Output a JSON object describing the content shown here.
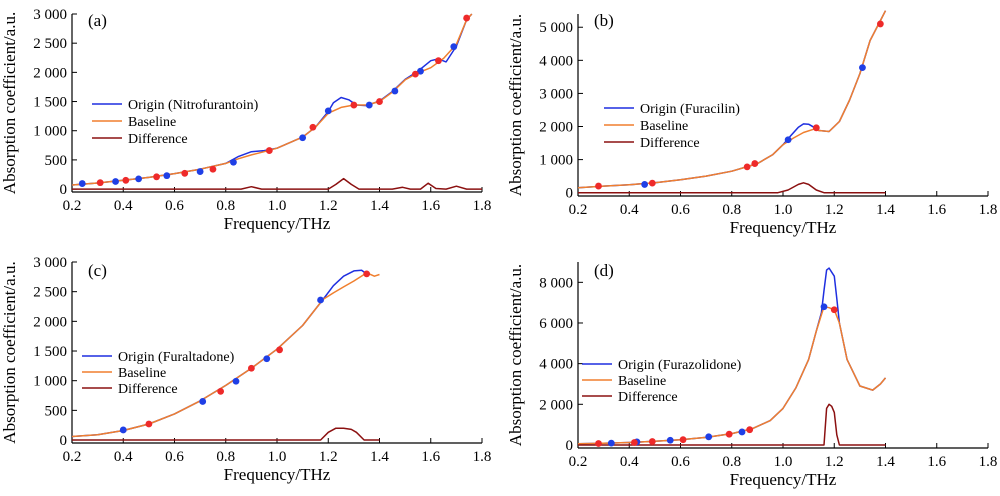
{
  "colors": {
    "origin": "#1f2fe0",
    "baseline": "#f07f2e",
    "difference": "#8b1010",
    "blue_point": "#1f3fe6",
    "red_point": "#ee2a2a"
  },
  "chart_data": [
    {
      "type": "line",
      "panel_label": "(a)",
      "xlabel": "Frequency/THz",
      "ylabel": "Absorption coefficient/a.u.",
      "xlim": [
        0.2,
        1.8
      ],
      "ylim": [
        -50,
        3000
      ],
      "xticks": [
        0.2,
        0.4,
        0.6,
        0.8,
        1.0,
        1.2,
        1.4,
        1.6,
        1.8
      ],
      "xtick_labels": [
        "0.2",
        "0.4",
        "0.6",
        "0.8",
        "1.0",
        "1.2",
        "1.4",
        "1.6",
        "1.8"
      ],
      "yticks": [
        0,
        500,
        1000,
        1500,
        2000,
        2500,
        3000
      ],
      "ytick_labels": [
        "0",
        "500",
        "1 000",
        "1 500",
        "2 000",
        "2 500",
        "3 000"
      ],
      "legend_position": "center-left",
      "series": [
        {
          "name": "Origin (Nitrofurantoin)",
          "color": "#1f2fe0",
          "x": [
            0.2,
            0.3,
            0.4,
            0.5,
            0.6,
            0.7,
            0.8,
            0.85,
            0.9,
            0.95,
            1.0,
            1.1,
            1.15,
            1.2,
            1.22,
            1.25,
            1.28,
            1.31,
            1.35,
            1.4,
            1.45,
            1.5,
            1.55,
            1.6,
            1.63,
            1.66,
            1.7,
            1.74,
            1.76
          ],
          "y": [
            70,
            105,
            150,
            200,
            265,
            340,
            440,
            560,
            640,
            660,
            700,
            890,
            1060,
            1330,
            1480,
            1570,
            1530,
            1440,
            1430,
            1510,
            1670,
            1880,
            2020,
            2200,
            2230,
            2180,
            2450,
            2900,
            3000
          ]
        },
        {
          "name": "Baseline",
          "color": "#f07f2e",
          "x": [
            0.2,
            0.3,
            0.4,
            0.5,
            0.6,
            0.7,
            0.8,
            0.85,
            0.9,
            0.95,
            1.0,
            1.1,
            1.15,
            1.2,
            1.25,
            1.3,
            1.35,
            1.4,
            1.45,
            1.5,
            1.55,
            1.6,
            1.65,
            1.7,
            1.74,
            1.76
          ],
          "y": [
            70,
            105,
            150,
            200,
            265,
            340,
            440,
            520,
            585,
            640,
            700,
            890,
            1060,
            1300,
            1400,
            1440,
            1440,
            1500,
            1660,
            1870,
            1990,
            2080,
            2240,
            2480,
            2900,
            3000
          ]
        },
        {
          "name": "Difference",
          "color": "#8b1010",
          "x": [
            0.2,
            0.86,
            0.9,
            0.94,
            1.2,
            1.23,
            1.26,
            1.29,
            1.32,
            1.45,
            1.49,
            1.52,
            1.56,
            1.59,
            1.62,
            1.66,
            1.7,
            1.74,
            1.8
          ],
          "y": [
            0,
            0,
            40,
            0,
            0,
            80,
            180,
            80,
            0,
            0,
            30,
            0,
            0,
            100,
            10,
            0,
            50,
            0,
            0
          ]
        }
      ],
      "blue_points": [
        [
          0.24,
          95
        ],
        [
          0.37,
          130
        ],
        [
          0.46,
          175
        ],
        [
          0.57,
          230
        ],
        [
          0.7,
          300
        ],
        [
          0.83,
          460
        ],
        [
          1.1,
          880
        ],
        [
          1.2,
          1340
        ],
        [
          1.36,
          1440
        ],
        [
          1.46,
          1680
        ],
        [
          1.56,
          2020
        ],
        [
          1.69,
          2440
        ]
      ],
      "red_points": [
        [
          0.31,
          110
        ],
        [
          0.41,
          150
        ],
        [
          0.53,
          210
        ],
        [
          0.64,
          270
        ],
        [
          0.75,
          340
        ],
        [
          0.97,
          660
        ],
        [
          1.14,
          1060
        ],
        [
          1.3,
          1440
        ],
        [
          1.4,
          1500
        ],
        [
          1.54,
          1970
        ],
        [
          1.63,
          2200
        ],
        [
          1.74,
          2930
        ]
      ]
    },
    {
      "type": "line",
      "panel_label": "(b)",
      "xlabel": "Frequency/THz",
      "ylabel": "Absorption coefficient/a.u.",
      "xlim": [
        0.2,
        1.8
      ],
      "ylim": [
        -100,
        5400
      ],
      "xticks": [
        0.2,
        0.4,
        0.6,
        0.8,
        1.0,
        1.2,
        1.4,
        1.6,
        1.8
      ],
      "xtick_labels": [
        "0.2",
        "0.4",
        "0.6",
        "0.8",
        "1.0",
        "1.2",
        "1.4",
        "1.6",
        "1.8"
      ],
      "yticks": [
        0,
        1000,
        2000,
        3000,
        4000,
        5000
      ],
      "ytick_labels": [
        "0",
        "1 000",
        "2 000",
        "3 000",
        "4 000",
        "5 000"
      ],
      "legend_position": "center-left",
      "series": [
        {
          "name": "Origin (Furacilin)",
          "color": "#1f2fe0",
          "x": [
            0.2,
            0.3,
            0.4,
            0.5,
            0.6,
            0.7,
            0.8,
            0.9,
            0.96,
            1.0,
            1.03,
            1.06,
            1.08,
            1.1,
            1.12,
            1.14,
            1.18,
            1.22,
            1.26,
            1.3,
            1.34,
            1.38,
            1.4
          ],
          "y": [
            150,
            200,
            240,
            300,
            390,
            500,
            650,
            880,
            1150,
            1450,
            1720,
            1980,
            2080,
            2070,
            1980,
            1880,
            1850,
            2150,
            2800,
            3600,
            4600,
            5200,
            5500
          ]
        },
        {
          "name": "Baseline",
          "color": "#f07f2e",
          "x": [
            0.2,
            0.3,
            0.4,
            0.5,
            0.6,
            0.7,
            0.8,
            0.9,
            0.96,
            1.0,
            1.04,
            1.08,
            1.12,
            1.14,
            1.18,
            1.22,
            1.26,
            1.3,
            1.34,
            1.38,
            1.4
          ],
          "y": [
            150,
            200,
            240,
            300,
            390,
            500,
            650,
            880,
            1150,
            1450,
            1650,
            1820,
            1920,
            1880,
            1850,
            2150,
            2800,
            3600,
            4600,
            5200,
            5500
          ]
        },
        {
          "name": "Difference",
          "color": "#8b1010",
          "x": [
            0.2,
            0.98,
            1.02,
            1.06,
            1.08,
            1.1,
            1.13,
            1.16,
            1.4
          ],
          "y": [
            0,
            0,
            80,
            250,
            300,
            250,
            80,
            0,
            0
          ]
        }
      ],
      "blue_points": [
        [
          0.46,
          250
        ],
        [
          1.02,
          1600
        ],
        [
          1.31,
          3780
        ]
      ],
      "red_points": [
        [
          0.28,
          200
        ],
        [
          0.49,
          290
        ],
        [
          0.86,
          780
        ],
        [
          0.89,
          880
        ],
        [
          1.13,
          1960
        ],
        [
          1.38,
          5100
        ]
      ]
    },
    {
      "type": "line",
      "panel_label": "(c)",
      "xlabel": "Frequency/THz",
      "ylabel": "Absorption coefficient/a.u.",
      "xlim": [
        0.2,
        1.8
      ],
      "ylim": [
        -50,
        3000
      ],
      "xticks": [
        0.2,
        0.4,
        0.6,
        0.8,
        1.0,
        1.2,
        1.4,
        1.6,
        1.8
      ],
      "xtick_labels": [
        "0.2",
        "0.4",
        "0.6",
        "0.8",
        "1.0",
        "1.2",
        "1.4",
        "1.6",
        "1.8"
      ],
      "yticks": [
        0,
        500,
        1000,
        1500,
        2000,
        2500,
        3000
      ],
      "ytick_labels": [
        "0",
        "500",
        "1 000",
        "1 500",
        "2 000",
        "2 500",
        "3 000"
      ],
      "legend_position": "lower-left",
      "series": [
        {
          "name": "Origin (Furaltadone)",
          "color": "#1f2fe0",
          "x": [
            0.2,
            0.3,
            0.4,
            0.5,
            0.6,
            0.7,
            0.8,
            0.9,
            1.0,
            1.1,
            1.18,
            1.22,
            1.26,
            1.3,
            1.33,
            1.35
          ],
          "y": [
            60,
            90,
            160,
            270,
            440,
            660,
            920,
            1210,
            1530,
            1930,
            2370,
            2600,
            2760,
            2850,
            2860,
            2800
          ]
        },
        {
          "name": "Baseline",
          "color": "#f07f2e",
          "x": [
            0.2,
            0.3,
            0.4,
            0.5,
            0.6,
            0.7,
            0.8,
            0.9,
            1.0,
            1.1,
            1.18,
            1.22,
            1.26,
            1.3,
            1.34,
            1.36,
            1.38,
            1.4
          ],
          "y": [
            60,
            90,
            160,
            270,
            440,
            660,
            920,
            1210,
            1530,
            1930,
            2370,
            2480,
            2580,
            2680,
            2790,
            2800,
            2760,
            2790
          ]
        },
        {
          "name": "Difference",
          "color": "#8b1010",
          "x": [
            0.2,
            1.17,
            1.2,
            1.23,
            1.26,
            1.29,
            1.31,
            1.34,
            1.36,
            1.4
          ],
          "y": [
            0,
            0,
            130,
            200,
            200,
            180,
            130,
            0,
            0,
            0
          ]
        }
      ],
      "blue_points": [
        [
          0.4,
          170
        ],
        [
          0.71,
          650
        ],
        [
          0.84,
          990
        ],
        [
          0.96,
          1370
        ],
        [
          1.17,
          2360
        ]
      ],
      "red_points": [
        [
          0.5,
          270
        ],
        [
          0.78,
          820
        ],
        [
          0.9,
          1210
        ],
        [
          1.01,
          1520
        ],
        [
          1.35,
          2800
        ]
      ]
    },
    {
      "type": "line",
      "panel_label": "(d)",
      "xlabel": "Frequency/THz",
      "ylabel": "Absorption coefficient/a.u.",
      "xlim": [
        0.2,
        1.8
      ],
      "ylim": [
        -150,
        9000
      ],
      "xticks": [
        0.2,
        0.4,
        0.6,
        0.8,
        1.0,
        1.2,
        1.4,
        1.6,
        1.8
      ],
      "xtick_labels": [
        "0.2",
        "0.4",
        "0.6",
        "0.8",
        "1.0",
        "1.2",
        "1.4",
        "1.6",
        "1.8"
      ],
      "yticks": [
        0,
        2000,
        4000,
        6000,
        8000
      ],
      "ytick_labels": [
        "0",
        "2 000",
        "4 000",
        "6 000",
        "8 000"
      ],
      "legend_position": "center-left",
      "series": [
        {
          "name": "Origin (Furazolidone)",
          "color": "#1f2fe0",
          "x": [
            0.2,
            0.3,
            0.4,
            0.5,
            0.6,
            0.7,
            0.8,
            0.88,
            0.95,
            1.0,
            1.05,
            1.1,
            1.13,
            1.15,
            1.16,
            1.17,
            1.18,
            1.19,
            1.2,
            1.21,
            1.22,
            1.25,
            1.3,
            1.35,
            1.38,
            1.4
          ],
          "y": [
            60,
            80,
            120,
            180,
            260,
            370,
            560,
            800,
            1200,
            1800,
            2800,
            4200,
            5600,
            6500,
            7600,
            8600,
            8700,
            8500,
            8300,
            7200,
            6000,
            4200,
            2900,
            2700,
            3000,
            3300
          ]
        },
        {
          "name": "Baseline",
          "color": "#f07f2e",
          "x": [
            0.2,
            0.3,
            0.4,
            0.5,
            0.6,
            0.7,
            0.8,
            0.88,
            0.95,
            1.0,
            1.05,
            1.1,
            1.13,
            1.16,
            1.18,
            1.2,
            1.22,
            1.25,
            1.3,
            1.35,
            1.38,
            1.4
          ],
          "y": [
            60,
            80,
            120,
            180,
            260,
            370,
            560,
            800,
            1200,
            1800,
            2800,
            4200,
            5600,
            6800,
            6750,
            6650,
            6000,
            4200,
            2900,
            2700,
            3000,
            3300
          ]
        },
        {
          "name": "Difference",
          "color": "#8b1010",
          "x": [
            0.2,
            1.16,
            1.17,
            1.18,
            1.19,
            1.2,
            1.21,
            1.22,
            1.4
          ],
          "y": [
            0,
            0,
            1800,
            2000,
            1900,
            1600,
            500,
            0,
            0
          ]
        }
      ],
      "blue_points": [
        [
          0.33,
          90
        ],
        [
          0.43,
          150
        ],
        [
          0.56,
          230
        ],
        [
          0.71,
          400
        ],
        [
          0.84,
          640
        ],
        [
          1.16,
          6800
        ]
      ],
      "red_points": [
        [
          0.28,
          70
        ],
        [
          0.42,
          120
        ],
        [
          0.49,
          170
        ],
        [
          0.61,
          260
        ],
        [
          0.79,
          530
        ],
        [
          0.87,
          750
        ],
        [
          1.2,
          6650
        ]
      ]
    }
  ]
}
